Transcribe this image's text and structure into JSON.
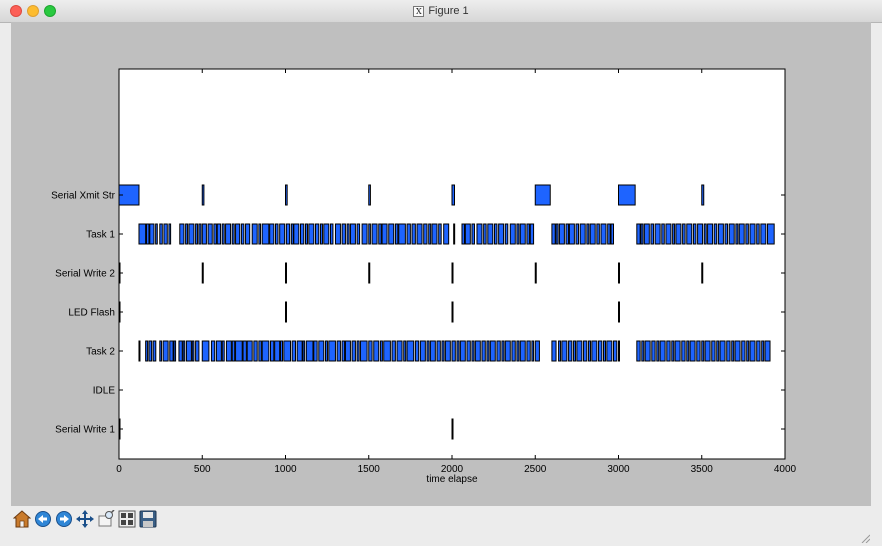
{
  "window": {
    "title": "Figure 1"
  },
  "chart_data": {
    "type": "gantt",
    "xlabel": "time elapse",
    "ylabel": "",
    "xlim": [
      0,
      4000
    ],
    "x_ticks": [
      0,
      500,
      1000,
      1500,
      2000,
      2500,
      3000,
      3500,
      4000
    ],
    "grid": false,
    "categories": [
      "Serial Write 1",
      "IDLE",
      "Task 2",
      "LED Flash",
      "Serial Write 2",
      "Task 1",
      "Serial Xmit Str"
    ],
    "bar_color": "#1e64ff",
    "edge_color": "#000000",
    "series": [
      {
        "task": "Serial Write 1",
        "intervals": [
          [
            0,
            4
          ],
          [
            2000,
            4
          ]
        ]
      },
      {
        "task": "IDLE",
        "intervals": []
      },
      {
        "task": "Task 2",
        "intervals": [
          [
            120,
            4
          ],
          [
            160,
            12
          ],
          [
            180,
            16
          ],
          [
            205,
            16
          ],
          [
            245,
            10
          ],
          [
            265,
            30
          ],
          [
            305,
            20
          ],
          [
            330,
            10
          ],
          [
            360,
            20
          ],
          [
            385,
            10
          ],
          [
            405,
            30
          ],
          [
            440,
            10
          ],
          [
            460,
            20
          ],
          [
            500,
            40
          ],
          [
            555,
            20
          ],
          [
            585,
            30
          ],
          [
            620,
            12
          ],
          [
            645,
            30
          ],
          [
            680,
            15
          ],
          [
            700,
            40
          ],
          [
            745,
            20
          ],
          [
            770,
            30
          ],
          [
            810,
            20
          ],
          [
            840,
            15
          ],
          [
            860,
            40
          ],
          [
            910,
            20
          ],
          [
            935,
            30
          ],
          [
            970,
            12
          ],
          [
            990,
            40
          ],
          [
            1040,
            20
          ],
          [
            1070,
            30
          ],
          [
            1105,
            10
          ],
          [
            1125,
            40
          ],
          [
            1170,
            20
          ],
          [
            1200,
            30
          ],
          [
            1240,
            12
          ],
          [
            1260,
            40
          ],
          [
            1310,
            20
          ],
          [
            1340,
            15
          ],
          [
            1360,
            30
          ],
          [
            1400,
            20
          ],
          [
            1430,
            12
          ],
          [
            1450,
            40
          ],
          [
            1500,
            20
          ],
          [
            1530,
            30
          ],
          [
            1570,
            12
          ],
          [
            1590,
            40
          ],
          [
            1640,
            20
          ],
          [
            1670,
            30
          ],
          [
            1710,
            12
          ],
          [
            1730,
            40
          ],
          [
            1780,
            20
          ],
          [
            1810,
            30
          ],
          [
            1850,
            12
          ],
          [
            1870,
            30
          ],
          [
            1910,
            20
          ],
          [
            1940,
            12
          ],
          [
            1960,
            30
          ],
          [
            2000,
            20
          ],
          [
            2030,
            12
          ],
          [
            2050,
            30
          ],
          [
            2090,
            20
          ],
          [
            2120,
            12
          ],
          [
            2140,
            30
          ],
          [
            2180,
            20
          ],
          [
            2210,
            12
          ],
          [
            2230,
            30
          ],
          [
            2270,
            20
          ],
          [
            2300,
            12
          ],
          [
            2320,
            30
          ],
          [
            2360,
            20
          ],
          [
            2390,
            12
          ],
          [
            2410,
            30
          ],
          [
            2450,
            20
          ],
          [
            2480,
            10
          ],
          [
            2500,
            25
          ],
          [
            2600,
            25
          ],
          [
            2640,
            12
          ],
          [
            2660,
            30
          ],
          [
            2700,
            20
          ],
          [
            2730,
            12
          ],
          [
            2750,
            30
          ],
          [
            2790,
            20
          ],
          [
            2820,
            12
          ],
          [
            2840,
            30
          ],
          [
            2880,
            20
          ],
          [
            2910,
            12
          ],
          [
            2930,
            30
          ],
          [
            2970,
            20
          ],
          [
            3000,
            4
          ],
          [
            3110,
            20
          ],
          [
            3140,
            12
          ],
          [
            3160,
            30
          ],
          [
            3200,
            20
          ],
          [
            3230,
            12
          ],
          [
            3250,
            30
          ],
          [
            3290,
            20
          ],
          [
            3320,
            12
          ],
          [
            3340,
            30
          ],
          [
            3380,
            20
          ],
          [
            3410,
            12
          ],
          [
            3430,
            30
          ],
          [
            3470,
            20
          ],
          [
            3500,
            12
          ],
          [
            3520,
            30
          ],
          [
            3560,
            20
          ],
          [
            3590,
            12
          ],
          [
            3610,
            30
          ],
          [
            3650,
            20
          ],
          [
            3680,
            12
          ],
          [
            3700,
            30
          ],
          [
            3740,
            20
          ],
          [
            3770,
            12
          ],
          [
            3790,
            30
          ],
          [
            3830,
            20
          ],
          [
            3860,
            12
          ],
          [
            3880,
            30
          ]
        ]
      },
      {
        "task": "LED Flash",
        "intervals": [
          [
            0,
            4
          ],
          [
            1000,
            4
          ],
          [
            2000,
            4
          ],
          [
            3000,
            4
          ]
        ]
      },
      {
        "task": "Serial Write 2",
        "intervals": [
          [
            0,
            3
          ],
          [
            500,
            3
          ],
          [
            1000,
            3
          ],
          [
            1500,
            3
          ],
          [
            2000,
            3
          ],
          [
            2500,
            3
          ],
          [
            3000,
            5
          ],
          [
            3500,
            3
          ]
        ]
      },
      {
        "task": "Task 1",
        "intervals": [
          [
            120,
            40
          ],
          [
            165,
            15
          ],
          [
            185,
            25
          ],
          [
            220,
            10
          ],
          [
            245,
            15
          ],
          [
            270,
            20
          ],
          [
            300,
            10
          ],
          [
            365,
            25
          ],
          [
            400,
            12
          ],
          [
            420,
            30
          ],
          [
            460,
            12
          ],
          [
            480,
            12
          ],
          [
            500,
            25
          ],
          [
            535,
            25
          ],
          [
            570,
            15
          ],
          [
            590,
            20
          ],
          [
            620,
            12
          ],
          [
            640,
            30
          ],
          [
            680,
            12
          ],
          [
            700,
            25
          ],
          [
            735,
            15
          ],
          [
            760,
            25
          ],
          [
            800,
            30
          ],
          [
            840,
            10
          ],
          [
            860,
            40
          ],
          [
            905,
            25
          ],
          [
            940,
            15
          ],
          [
            965,
            30
          ],
          [
            1005,
            20
          ],
          [
            1035,
            12
          ],
          [
            1050,
            30
          ],
          [
            1090,
            20
          ],
          [
            1120,
            12
          ],
          [
            1140,
            30
          ],
          [
            1180,
            20
          ],
          [
            1210,
            12
          ],
          [
            1230,
            30
          ],
          [
            1270,
            15
          ],
          [
            1300,
            30
          ],
          [
            1340,
            20
          ],
          [
            1370,
            12
          ],
          [
            1390,
            30
          ],
          [
            1430,
            15
          ],
          [
            1460,
            30
          ],
          [
            1500,
            10
          ],
          [
            1520,
            30
          ],
          [
            1560,
            15
          ],
          [
            1580,
            30
          ],
          [
            1620,
            30
          ],
          [
            1660,
            15
          ],
          [
            1680,
            40
          ],
          [
            1730,
            20
          ],
          [
            1760,
            20
          ],
          [
            1790,
            30
          ],
          [
            1830,
            20
          ],
          [
            1860,
            12
          ],
          [
            1880,
            30
          ],
          [
            1920,
            15
          ],
          [
            1950,
            30
          ],
          [
            2010,
            6
          ],
          [
            2060,
            15
          ],
          [
            2080,
            30
          ],
          [
            2120,
            15
          ],
          [
            2150,
            30
          ],
          [
            2190,
            15
          ],
          [
            2215,
            30
          ],
          [
            2255,
            15
          ],
          [
            2280,
            30
          ],
          [
            2320,
            15
          ],
          [
            2350,
            30
          ],
          [
            2390,
            12
          ],
          [
            2410,
            30
          ],
          [
            2450,
            15
          ],
          [
            2470,
            20
          ],
          [
            2600,
            20
          ],
          [
            2625,
            12
          ],
          [
            2645,
            30
          ],
          [
            2685,
            15
          ],
          [
            2705,
            30
          ],
          [
            2745,
            15
          ],
          [
            2770,
            30
          ],
          [
            2810,
            12
          ],
          [
            2830,
            30
          ],
          [
            2870,
            15
          ],
          [
            2895,
            30
          ],
          [
            2935,
            15
          ],
          [
            2955,
            15
          ],
          [
            3110,
            20
          ],
          [
            3135,
            12
          ],
          [
            3155,
            30
          ],
          [
            3195,
            15
          ],
          [
            3220,
            30
          ],
          [
            3260,
            15
          ],
          [
            3285,
            30
          ],
          [
            3325,
            12
          ],
          [
            3345,
            30
          ],
          [
            3385,
            15
          ],
          [
            3410,
            30
          ],
          [
            3450,
            15
          ],
          [
            3475,
            30
          ],
          [
            3515,
            12
          ],
          [
            3535,
            30
          ],
          [
            3575,
            15
          ],
          [
            3600,
            30
          ],
          [
            3640,
            15
          ],
          [
            3665,
            30
          ],
          [
            3705,
            12
          ],
          [
            3725,
            30
          ],
          [
            3765,
            15
          ],
          [
            3790,
            30
          ],
          [
            3830,
            15
          ],
          [
            3855,
            30
          ],
          [
            3895,
            40
          ]
        ]
      },
      {
        "task": "Serial Xmit Str",
        "intervals": [
          [
            0,
            120
          ],
          [
            500,
            10
          ],
          [
            1000,
            10
          ],
          [
            1500,
            10
          ],
          [
            2000,
            15
          ],
          [
            2500,
            90
          ],
          [
            3000,
            100
          ],
          [
            3500,
            12
          ]
        ]
      }
    ]
  },
  "toolbar": {
    "buttons": [
      {
        "name": "home-button",
        "icon": "home-icon"
      },
      {
        "name": "back-button",
        "icon": "back-icon"
      },
      {
        "name": "forward-button",
        "icon": "forward-icon"
      },
      {
        "name": "pan-button",
        "icon": "pan-icon"
      },
      {
        "name": "zoom-button",
        "icon": "zoom-icon"
      },
      {
        "name": "configure-subplots-button",
        "icon": "subplots-icon"
      },
      {
        "name": "save-button",
        "icon": "save-icon"
      }
    ]
  }
}
